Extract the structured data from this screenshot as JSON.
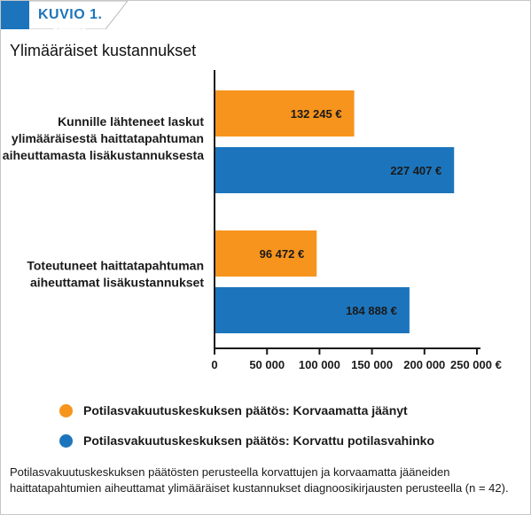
{
  "header": {
    "label": "KUVIO 1.",
    "icon": "image-icon",
    "accent_color": "#1c75bc"
  },
  "chart_data": {
    "type": "bar",
    "orientation": "horizontal",
    "title": "Ylimääräiset kustannukset",
    "categories": [
      [
        "Kunnille lähteneet laskut",
        "ylimääräisestä haittatapahtuman",
        "aiheuttamasta lisäkustannuksesta"
      ],
      [
        "Toteutuneet haittatapahtuman",
        "aiheuttamat lisäkustannukset"
      ]
    ],
    "series": [
      {
        "name": "Potilasvakuutuskeskuksen päätös: Korvaamatta jäänyt",
        "color": "#f7941d",
        "values": [
          132245,
          96472
        ],
        "value_labels": [
          "132 245 €",
          "96 472 €"
        ]
      },
      {
        "name": "Potilasvakuutuskeskuksen päätös: Korvattu potilasvahinko",
        "color": "#1c75bc",
        "values": [
          227407,
          184888
        ],
        "value_labels": [
          "227 407 €",
          "184 888 €"
        ]
      }
    ],
    "xlim": [
      0,
      250000
    ],
    "xticks": [
      0,
      50000,
      100000,
      150000,
      200000,
      250000
    ],
    "xtick_labels": [
      "0",
      "50 000",
      "100 000",
      "150 000",
      "200 000",
      "250 000 €"
    ],
    "grid": false,
    "legend_position": "bottom"
  },
  "caption": "Potilasvakuutuskeskuksen päätösten perusteella korvattujen ja korvaamatta jääneiden haittatapahtumien aiheuttamat ylimääräiset kustannukset diagnoosikirjausten perusteella (n = 42)."
}
